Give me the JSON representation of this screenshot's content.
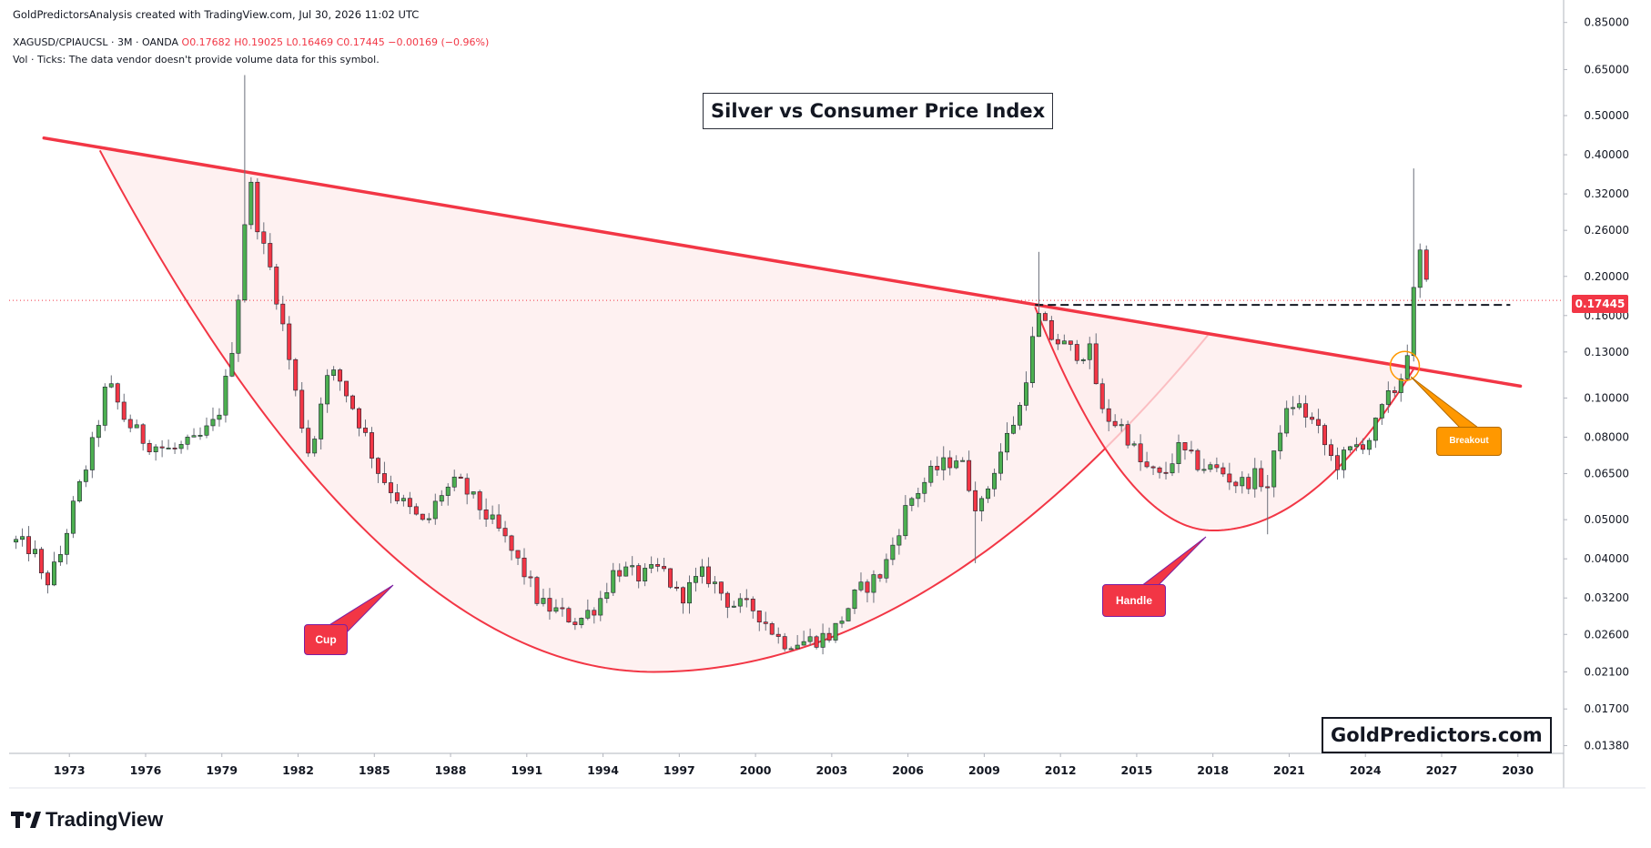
{
  "header": {
    "attribution": "GoldPredictorsAnalysis created with TradingView.com, Jul 30, 2026 11:02 UTC",
    "symbol_line": "XAGUSD/CPIAUCSL · 3M · OANDA",
    "ohlc": {
      "open_label": "O",
      "open": "0.17682",
      "high_label": "H",
      "high": "0.19025",
      "low_label": "L",
      "low": "0.16469",
      "close_label": "C",
      "close": "0.17445",
      "change": "−0.00169 (−0.96%)"
    },
    "volume_note": "Vol · Ticks: The data vendor doesn't provide volume data for this symbol."
  },
  "title": "Silver vs Consumer Price Index",
  "brand": "GoldPredictors.com",
  "footer": {
    "logo_text": "TradingView"
  },
  "annotations": {
    "cup": "Cup",
    "handle": "Handle",
    "breakout": "Breakout"
  },
  "last_price": "0.17445",
  "colors": {
    "up": "#4caf50",
    "down": "#f23645",
    "trendline": "#f23645",
    "cup_fill": "#fdecec",
    "callout_red": "#f23645",
    "callout_orange": "#ff9800",
    "grid": "#f0f3fa",
    "axis_text": "#131722"
  },
  "chart_data": {
    "type": "candlestick",
    "scale": "log",
    "timeframe": "3M",
    "x_ticks": [
      "1973",
      "1976",
      "1979",
      "1982",
      "1985",
      "1988",
      "1991",
      "1994",
      "1997",
      "2000",
      "2003",
      "2006",
      "2009",
      "2012",
      "2015",
      "2018",
      "2021",
      "2024",
      "2027",
      "2030"
    ],
    "y_ticks": [
      "0.85000",
      "0.65000",
      "0.50000",
      "0.40000",
      "0.32000",
      "0.26000",
      "0.20000",
      "0.16000",
      "0.13000",
      "0.10000",
      "0.08000",
      "0.06500",
      "0.05000",
      "0.04000",
      "0.03200",
      "0.02600",
      "0.02100",
      "0.01700",
      "0.01380"
    ],
    "xlim": [
      1970.7,
      2031.8
    ],
    "ylim": [
      0.0132,
      0.88
    ],
    "waypoints": [
      [
        1970.9,
        0.044
      ],
      [
        1971.6,
        0.042
      ],
      [
        1972.0,
        0.034
      ],
      [
        1972.6,
        0.04
      ],
      [
        1973.0,
        0.05
      ],
      [
        1973.6,
        0.066
      ],
      [
        1974.0,
        0.08
      ],
      [
        1974.5,
        0.11
      ],
      [
        1975.2,
        0.088
      ],
      [
        1976.0,
        0.078
      ],
      [
        1977.0,
        0.074
      ],
      [
        1978.0,
        0.078
      ],
      [
        1978.8,
        0.088
      ],
      [
        1979.3,
        0.12
      ],
      [
        1979.7,
        0.19
      ],
      [
        1980.05,
        0.36
      ],
      [
        1980.5,
        0.25
      ],
      [
        1981.0,
        0.2
      ],
      [
        1981.5,
        0.14
      ],
      [
        1982.0,
        0.095
      ],
      [
        1982.5,
        0.07
      ],
      [
        1983.0,
        0.11
      ],
      [
        1983.5,
        0.115
      ],
      [
        1984.0,
        0.1
      ],
      [
        1984.6,
        0.082
      ],
      [
        1985.2,
        0.065
      ],
      [
        1986.0,
        0.056
      ],
      [
        1987.0,
        0.048
      ],
      [
        1987.6,
        0.058
      ],
      [
        1988.3,
        0.062
      ],
      [
        1989.0,
        0.055
      ],
      [
        1990.0,
        0.046
      ],
      [
        1991.0,
        0.036
      ],
      [
        1991.5,
        0.031
      ],
      [
        1992.0,
        0.03
      ],
      [
        1993.0,
        0.028
      ],
      [
        1993.8,
        0.031
      ],
      [
        1994.5,
        0.038
      ],
      [
        1995.5,
        0.036
      ],
      [
        1996.3,
        0.038
      ],
      [
        1997.0,
        0.032
      ],
      [
        1998.0,
        0.037
      ],
      [
        1999.0,
        0.031
      ],
      [
        2000.0,
        0.03
      ],
      [
        2001.0,
        0.025
      ],
      [
        2002.0,
        0.025
      ],
      [
        2003.0,
        0.026
      ],
      [
        2004.0,
        0.033
      ],
      [
        2005.0,
        0.037
      ],
      [
        2006.0,
        0.055
      ],
      [
        2007.0,
        0.066
      ],
      [
        2008.0,
        0.072
      ],
      [
        2008.8,
        0.052
      ],
      [
        2009.5,
        0.07
      ],
      [
        2010.4,
        0.095
      ],
      [
        2011.1,
        0.16
      ],
      [
        2011.6,
        0.142
      ],
      [
        2012.5,
        0.13
      ],
      [
        2013.2,
        0.13
      ],
      [
        2013.6,
        0.092
      ],
      [
        2014.5,
        0.084
      ],
      [
        2015.2,
        0.068
      ],
      [
        2016.0,
        0.063
      ],
      [
        2016.6,
        0.075
      ],
      [
        2017.5,
        0.068
      ],
      [
        2018.3,
        0.066
      ],
      [
        2019.0,
        0.061
      ],
      [
        2019.7,
        0.064
      ],
      [
        2020.2,
        0.06
      ],
      [
        2020.6,
        0.084
      ],
      [
        2021.2,
        0.098
      ],
      [
        2022.0,
        0.086
      ],
      [
        2022.8,
        0.068
      ],
      [
        2023.5,
        0.075
      ],
      [
        2024.2,
        0.08
      ],
      [
        2024.8,
        0.098
      ],
      [
        2025.2,
        0.106
      ],
      [
        2025.5,
        0.117
      ],
      [
        2025.8,
        0.15
      ],
      [
        2026.0,
        0.218
      ],
      [
        2026.25,
        0.232
      ],
      [
        2026.45,
        0.177
      ],
      [
        2026.58,
        0.1745
      ]
    ],
    "resistance_line": [
      [
        1972.0,
        0.44
      ],
      [
        2030.1,
        0.107
      ]
    ],
    "cup_curve": {
      "left": [
        1974.2,
        0.41
      ],
      "bottom": [
        1996.0,
        0.021
      ],
      "right": [
        2017.8,
        0.143
      ]
    },
    "handle_curve": {
      "left": [
        2011.0,
        0.168
      ],
      "bottom": [
        2018.0,
        0.047
      ],
      "right": [
        2025.9,
        0.118
      ]
    },
    "breakout_level": {
      "price": 0.17,
      "from": 2011.0,
      "to": 2029.7
    },
    "breakout_point": [
      2025.55,
      0.12
    ],
    "last_close": 0.17445
  }
}
